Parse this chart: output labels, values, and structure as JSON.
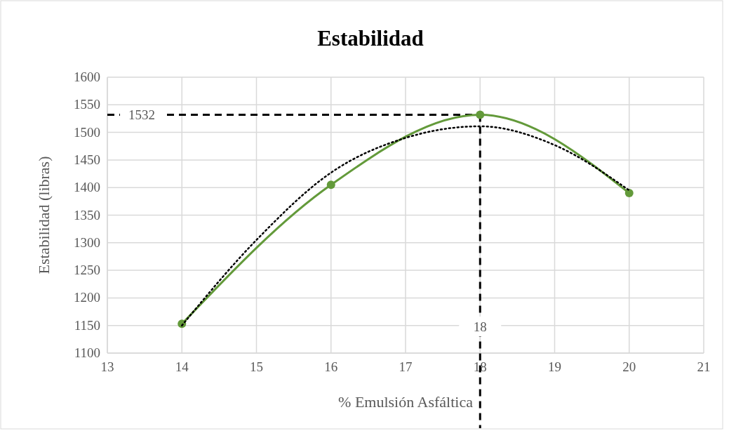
{
  "chart_data": {
    "type": "line",
    "title": "Estabilidad",
    "xlabel": "% Emulsión Asfáltica",
    "ylabel": "Estabilidad (libras)",
    "x": [
      14,
      16,
      18,
      20
    ],
    "series": [
      {
        "color": "#639a3a",
        "values": [
          1153,
          1405,
          1532,
          1390
        ],
        "marker": "circle",
        "line_style": "solid"
      },
      {
        "type": "line",
        "color": "#000000",
        "x": [
          14,
          15,
          16,
          17,
          18,
          19,
          20
        ],
        "values": [
          1150,
          1305,
          1427,
          1490,
          1511,
          1477,
          1395
        ],
        "marker": "none",
        "line_style": "dotted"
      }
    ],
    "xlim": [
      13,
      21
    ],
    "xticks": [
      13,
      14,
      15,
      16,
      17,
      18,
      19,
      20,
      21
    ],
    "ylim": [
      1100,
      1600
    ],
    "yticks": [
      1100,
      1150,
      1200,
      1250,
      1300,
      1350,
      1400,
      1450,
      1500,
      1550,
      1600
    ],
    "grid": true,
    "ref_lines": [
      {
        "axis": "y",
        "value": 1532,
        "label": "1532",
        "color": "#000000",
        "line_style": "dashed"
      },
      {
        "axis": "x",
        "value": 18,
        "label": "18",
        "color": "#000000",
        "line_style": "dashed"
      }
    ]
  }
}
